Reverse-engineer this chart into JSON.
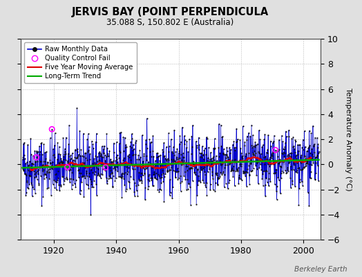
{
  "title": "JERVIS BAY (POINT PERPENDICULA",
  "subtitle": "35.088 S, 150.802 E (Australia)",
  "ylabel": "Temperature Anomaly (°C)",
  "year_start": 1910,
  "year_end": 2005,
  "ylim": [
    -6,
    10
  ],
  "yticks": [
    -6,
    -4,
    -2,
    0,
    2,
    4,
    6,
    8,
    10
  ],
  "xticks": [
    1920,
    1940,
    1960,
    1980,
    2000
  ],
  "background_color": "#e0e0e0",
  "plot_bg_color": "#ffffff",
  "raw_line_color": "#0000cc",
  "raw_dot_color": "#111111",
  "fill_color": "#aabbee",
  "moving_avg_color": "#dd0000",
  "trend_color": "#00aa00",
  "qc_fail_color": "#ff00ff",
  "watermark": "Berkeley Earth",
  "noise_std": 1.2,
  "seed": 42
}
